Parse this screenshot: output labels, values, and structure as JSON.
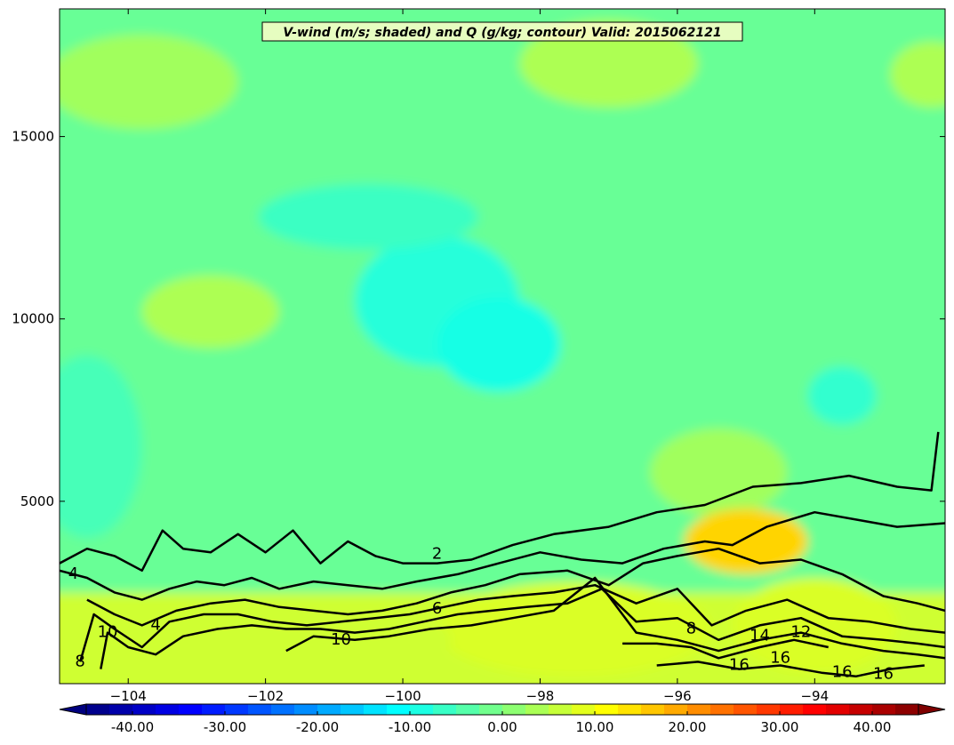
{
  "chart_data": {
    "type": "heatmap",
    "title": "V-wind (m/s; shaded) and Q (g/kg; contour) Valid: 2015062121",
    "xlabel": "",
    "ylabel": "",
    "xlim": [
      -105.0,
      -92.1
    ],
    "ylim": [
      0,
      18500
    ],
    "x_ticks": [
      -104,
      -102,
      -100,
      -98,
      -96,
      -94
    ],
    "x_tick_labels": [
      "−104",
      "−102",
      "−100",
      "−98",
      "−96",
      "−94"
    ],
    "y_ticks": [
      5000,
      10000,
      15000
    ],
    "y_tick_labels": [
      "5000",
      "10000",
      "15000"
    ],
    "colorbar": {
      "min": -45,
      "max": 45,
      "step": 2.5,
      "extend": "both",
      "ticks": [
        -40,
        -30,
        -20,
        -10,
        0,
        10,
        20,
        30,
        40
      ],
      "tick_labels": [
        "-40.00",
        "-30.00",
        "-20.00",
        "-10.00",
        "0.00",
        "10.00",
        "20.00",
        "30.00",
        "40.00"
      ]
    },
    "colors": {
      "jet_stops": [
        "#00007f",
        "#0000ff",
        "#007fff",
        "#00ffff",
        "#7fff7f",
        "#ffff00",
        "#ff7f00",
        "#ff0000",
        "#7f0000"
      ]
    },
    "v_wind_field": {
      "base_value": -2,
      "features": [
        {
          "x": -99.5,
          "y": 10500,
          "value": -8,
          "rx": 1.2,
          "ry": 1800
        },
        {
          "x": -98.6,
          "y": 9300,
          "value": -9,
          "rx": 0.9,
          "ry": 1300
        },
        {
          "x": -100.5,
          "y": 12800,
          "value": -6,
          "rx": 1.6,
          "ry": 900
        },
        {
          "x": -93.6,
          "y": 7900,
          "value": -7,
          "rx": 0.5,
          "ry": 800
        },
        {
          "x": -102.8,
          "y": 10200,
          "value": 4,
          "rx": 1.0,
          "ry": 1000
        },
        {
          "x": -103.8,
          "y": 16500,
          "value": 3,
          "rx": 1.4,
          "ry": 1300
        },
        {
          "x": -97.0,
          "y": 17000,
          "value": 4,
          "rx": 1.3,
          "ry": 1200
        },
        {
          "x": -95.4,
          "y": 5800,
          "value": 3,
          "rx": 1.0,
          "ry": 1200
        },
        {
          "x": -95.0,
          "y": 3900,
          "value": 15,
          "rx": 0.9,
          "ry": 900
        },
        {
          "x": -94.0,
          "y": 1600,
          "value": 8,
          "rx": 1.2,
          "ry": 1300
        },
        {
          "x": -92.3,
          "y": 16700,
          "value": 4,
          "rx": 0.6,
          "ry": 900
        },
        {
          "x": -104.6,
          "y": 6500,
          "value": -5,
          "rx": 0.8,
          "ry": 2500
        },
        {
          "x": -97.5,
          "y": 1500,
          "value": 8,
          "rx": 2.0,
          "ry": 1300
        },
        {
          "x": -101.5,
          "y": 1200,
          "value": 7,
          "rx": 2.2,
          "ry": 1200
        }
      ],
      "surface_layer": {
        "top_height": 2500,
        "value": 7
      }
    },
    "q_contours": [
      {
        "level": 2,
        "label": "2",
        "points": [
          [
            -105.0,
            3300
          ],
          [
            -104.6,
            3700
          ],
          [
            -104.2,
            3500
          ],
          [
            -103.8,
            3100
          ],
          [
            -103.5,
            4200
          ],
          [
            -103.2,
            3700
          ],
          [
            -102.8,
            3600
          ],
          [
            -102.4,
            4100
          ],
          [
            -102.0,
            3600
          ],
          [
            -101.6,
            4200
          ],
          [
            -101.2,
            3300
          ],
          [
            -100.8,
            3900
          ],
          [
            -100.4,
            3500
          ],
          [
            -100.0,
            3300
          ],
          [
            -99.5,
            3300
          ],
          [
            -99.0,
            3400
          ],
          [
            -98.4,
            3800
          ],
          [
            -97.8,
            4100
          ],
          [
            -97.0,
            4300
          ],
          [
            -96.3,
            4700
          ],
          [
            -95.6,
            4900
          ],
          [
            -94.9,
            5400
          ],
          [
            -94.2,
            5500
          ],
          [
            -93.5,
            5700
          ],
          [
            -92.8,
            5400
          ],
          [
            -92.3,
            5300
          ],
          [
            -92.2,
            6900
          ]
        ]
      },
      {
        "level": 4,
        "label": "4",
        "points": [
          [
            -105.0,
            3100
          ],
          [
            -104.6,
            2900
          ],
          [
            -104.2,
            2500
          ],
          [
            -103.8,
            2300
          ],
          [
            -103.4,
            2600
          ],
          [
            -103.0,
            2800
          ],
          [
            -102.6,
            2700
          ],
          [
            -102.2,
            2900
          ],
          [
            -101.8,
            2600
          ],
          [
            -101.3,
            2800
          ],
          [
            -100.8,
            2700
          ],
          [
            -100.3,
            2600
          ],
          [
            -99.8,
            2800
          ],
          [
            -99.2,
            3000
          ],
          [
            -98.6,
            3300
          ],
          [
            -98.0,
            3600
          ],
          [
            -97.4,
            3400
          ],
          [
            -96.8,
            3300
          ],
          [
            -96.2,
            3700
          ],
          [
            -95.6,
            3900
          ],
          [
            -95.2,
            3800
          ],
          [
            -94.7,
            4300
          ],
          [
            -94.0,
            4700
          ],
          [
            -93.4,
            4500
          ],
          [
            -92.8,
            4300
          ],
          [
            -92.1,
            4400
          ]
        ]
      },
      {
        "level": 6,
        "label": "6",
        "points": [
          [
            -104.6,
            2300
          ],
          [
            -104.2,
            1900
          ],
          [
            -103.8,
            1600
          ],
          [
            -103.3,
            2000
          ],
          [
            -102.8,
            2200
          ],
          [
            -102.3,
            2300
          ],
          [
            -101.8,
            2100
          ],
          [
            -101.3,
            2000
          ],
          [
            -100.8,
            1900
          ],
          [
            -100.3,
            2000
          ],
          [
            -99.8,
            2200
          ],
          [
            -99.3,
            2500
          ],
          [
            -98.8,
            2700
          ],
          [
            -98.3,
            3000
          ],
          [
            -97.6,
            3100
          ],
          [
            -97.0,
            2700
          ],
          [
            -96.5,
            3300
          ],
          [
            -96.0,
            3500
          ],
          [
            -95.4,
            3700
          ],
          [
            -94.8,
            3300
          ],
          [
            -94.2,
            3400
          ],
          [
            -93.6,
            3000
          ],
          [
            -93.0,
            2400
          ],
          [
            -92.5,
            2200
          ],
          [
            -92.1,
            2000
          ]
        ]
      },
      {
        "level": 8,
        "label": "8",
        "points": [
          [
            -104.7,
            600
          ],
          [
            -104.5,
            1900
          ],
          [
            -104.2,
            1500
          ],
          [
            -103.8,
            1000
          ],
          [
            -103.4,
            1700
          ],
          [
            -102.9,
            1900
          ],
          [
            -102.4,
            1900
          ],
          [
            -101.9,
            1700
          ],
          [
            -101.4,
            1600
          ],
          [
            -100.9,
            1700
          ],
          [
            -100.4,
            1800
          ],
          [
            -99.9,
            1900
          ],
          [
            -99.4,
            2100
          ],
          [
            -98.9,
            2300
          ],
          [
            -98.4,
            2400
          ],
          [
            -97.8,
            2500
          ],
          [
            -97.2,
            2700
          ],
          [
            -96.6,
            2200
          ],
          [
            -96.0,
            2600
          ],
          [
            -95.5,
            1600
          ],
          [
            -95.0,
            2000
          ],
          [
            -94.4,
            2300
          ],
          [
            -93.8,
            1800
          ],
          [
            -93.2,
            1700
          ],
          [
            -92.6,
            1500
          ],
          [
            -92.1,
            1400
          ]
        ]
      },
      {
        "level": 10,
        "label": "10",
        "points": [
          [
            -104.4,
            400
          ],
          [
            -104.3,
            1400
          ],
          [
            -104.0,
            1000
          ],
          [
            -103.6,
            800
          ],
          [
            -103.2,
            1300
          ],
          [
            -102.7,
            1500
          ],
          [
            -102.2,
            1600
          ],
          [
            -101.7,
            1500
          ],
          [
            -101.2,
            1500
          ],
          [
            -100.7,
            1400
          ],
          [
            -100.2,
            1500
          ],
          [
            -99.7,
            1700
          ],
          [
            -99.2,
            1900
          ],
          [
            -98.7,
            2000
          ],
          [
            -98.2,
            2100
          ],
          [
            -97.6,
            2200
          ],
          [
            -97.1,
            2600
          ],
          [
            -96.6,
            1700
          ],
          [
            -96.0,
            1800
          ],
          [
            -95.4,
            1200
          ],
          [
            -94.8,
            1600
          ],
          [
            -94.2,
            1800
          ],
          [
            -93.6,
            1300
          ],
          [
            -93.0,
            1200
          ],
          [
            -92.5,
            1100
          ],
          [
            -92.1,
            1000
          ]
        ]
      },
      {
        "level": 12,
        "label": "12",
        "points": [
          [
            -101.7,
            900
          ],
          [
            -101.3,
            1300
          ],
          [
            -100.7,
            1200
          ],
          [
            -100.2,
            1300
          ],
          [
            -99.6,
            1500
          ],
          [
            -99.0,
            1600
          ],
          [
            -98.4,
            1800
          ],
          [
            -97.8,
            2000
          ],
          [
            -97.2,
            2900
          ],
          [
            -96.6,
            1400
          ],
          [
            -96.0,
            1200
          ],
          [
            -95.4,
            900
          ],
          [
            -94.8,
            1200
          ],
          [
            -94.2,
            1400
          ],
          [
            -93.6,
            1100
          ],
          [
            -93.0,
            900
          ],
          [
            -92.5,
            800
          ],
          [
            -92.1,
            700
          ]
        ]
      },
      {
        "level": 14,
        "label": "14",
        "points": [
          [
            -96.8,
            1100
          ],
          [
            -96.3,
            1100
          ],
          [
            -95.8,
            1000
          ],
          [
            -95.4,
            700
          ],
          [
            -94.8,
            1000
          ],
          [
            -94.3,
            1200
          ],
          [
            -93.8,
            1000
          ]
        ]
      },
      {
        "level": 16,
        "label": "16",
        "points": [
          [
            -96.3,
            500
          ],
          [
            -95.7,
            600
          ],
          [
            -95.1,
            400
          ],
          [
            -94.5,
            500
          ],
          [
            -93.9,
            300
          ],
          [
            -93.4,
            200
          ],
          [
            -92.9,
            400
          ],
          [
            -92.4,
            500
          ]
        ]
      }
    ],
    "contour_labels": [
      {
        "text": "2",
        "x": -99.5,
        "y": 3550
      },
      {
        "text": "4",
        "x": -104.8,
        "y": 3000
      },
      {
        "text": "4",
        "x": -103.6,
        "y": 1600
      },
      {
        "text": "6",
        "x": -99.5,
        "y": 2050
      },
      {
        "text": "8",
        "x": -104.7,
        "y": 600
      },
      {
        "text": "8",
        "x": -95.8,
        "y": 1500
      },
      {
        "text": "10",
        "x": -104.3,
        "y": 1400
      },
      {
        "text": "10",
        "x": -100.9,
        "y": 1200
      },
      {
        "text": "12",
        "x": -94.2,
        "y": 1400
      },
      {
        "text": "14",
        "x": -94.8,
        "y": 1300
      },
      {
        "text": "16",
        "x": -95.1,
        "y": 500
      },
      {
        "text": "16",
        "x": -94.5,
        "y": 700
      },
      {
        "text": "16",
        "x": -93.6,
        "y": 300
      },
      {
        "text": "16",
        "x": -93.0,
        "y": 250
      }
    ]
  }
}
